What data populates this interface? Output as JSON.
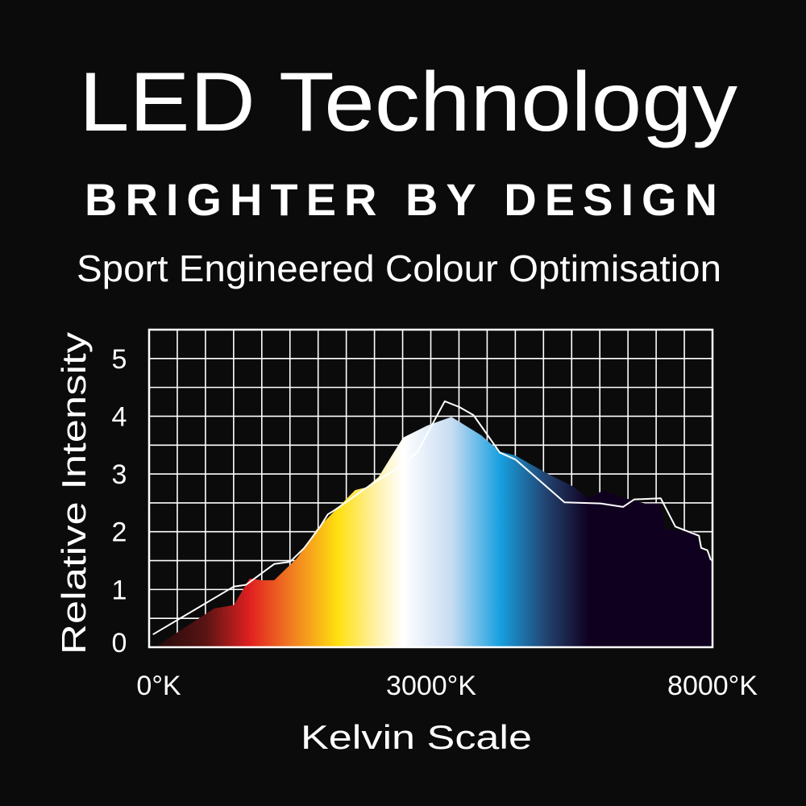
{
  "header": {
    "title": "LED Technology",
    "tagline": "BRIGHTER BY DESIGN",
    "subtitle": "Sport Engineered Colour Optimisation"
  },
  "colors": {
    "background": "#0b0b0b",
    "grid": "#ffffff",
    "line": "#ffffff"
  },
  "chart_data": {
    "type": "area",
    "xlabel": "Kelvin Scale",
    "ylabel": "Relative Intensity",
    "ylim": [
      0,
      5.5
    ],
    "xlim": [
      0,
      8000
    ],
    "x_scale": "piecewise (0–3000 on the left half, 3000–8000 on the right half)",
    "grid": true,
    "y_ticks": [
      "0",
      "1",
      "2",
      "3",
      "4",
      "5"
    ],
    "y_tick_values": [
      0,
      1,
      2,
      3,
      4,
      5
    ],
    "x_ticks": [
      "0°K",
      "3000°K",
      "8000°K"
    ],
    "x_tick_values": [
      0,
      3000,
      8000
    ],
    "area_gradient": [
      {
        "kelvin": 0,
        "color": "#1a0808"
      },
      {
        "kelvin": 600,
        "color": "#5a1414"
      },
      {
        "kelvin": 1070,
        "color": "#e02020"
      },
      {
        "kelvin": 1500,
        "color": "#f07a22"
      },
      {
        "kelvin": 2010,
        "color": "#ffe010"
      },
      {
        "kelvin": 2440,
        "color": "#fff2b0"
      },
      {
        "kelvin": 2700,
        "color": "#ffffff"
      },
      {
        "kelvin": 3360,
        "color": "#c8dcf2"
      },
      {
        "kelvin": 4220,
        "color": "#18a0e0"
      },
      {
        "kelvin": 5080,
        "color": "#22406c"
      },
      {
        "kelvin": 5800,
        "color": "#100020"
      },
      {
        "kelvin": 8000,
        "color": "#100020"
      }
    ],
    "series": [
      {
        "kind": "area",
        "points": [
          [
            70,
            0.01
          ],
          [
            690,
            0.67
          ],
          [
            900,
            0.73
          ],
          [
            1070,
            1.19
          ],
          [
            1200,
            1.16
          ],
          [
            1330,
            1.16
          ],
          [
            1570,
            1.54
          ],
          [
            1650,
            1.72
          ],
          [
            1780,
            2.04
          ],
          [
            2010,
            2.42
          ],
          [
            2190,
            2.72
          ],
          [
            2310,
            2.77
          ],
          [
            2440,
            2.95
          ],
          [
            2700,
            3.63
          ],
          [
            2960,
            3.84
          ],
          [
            3360,
            3.99
          ],
          [
            3890,
            3.67
          ],
          [
            4220,
            3.39
          ],
          [
            4500,
            3.32
          ],
          [
            4750,
            3.18
          ],
          [
            5080,
            3.0
          ],
          [
            5510,
            2.79
          ],
          [
            5790,
            2.58
          ],
          [
            6050,
            2.71
          ],
          [
            6370,
            2.6
          ],
          [
            6800,
            2.49
          ],
          [
            7080,
            2.49
          ],
          [
            7160,
            2.04
          ],
          [
            7660,
            2.0
          ],
          [
            7800,
            1.72
          ],
          [
            7940,
            1.58
          ],
          [
            8000,
            1.44
          ]
        ]
      },
      {
        "kind": "line",
        "points": [
          [
            40,
            0.22
          ],
          [
            900,
            1.05
          ],
          [
            1030,
            1.08
          ],
          [
            1330,
            1.44
          ],
          [
            1500,
            1.48
          ],
          [
            1650,
            1.72
          ],
          [
            1820,
            2.09
          ],
          [
            1900,
            2.3
          ],
          [
            1970,
            2.37
          ],
          [
            2380,
            2.84
          ],
          [
            2610,
            3.07
          ],
          [
            2850,
            3.37
          ],
          [
            3240,
            4.26
          ],
          [
            3500,
            4.16
          ],
          [
            3750,
            4.02
          ],
          [
            4220,
            3.37
          ],
          [
            4500,
            3.25
          ],
          [
            5370,
            2.51
          ],
          [
            6010,
            2.49
          ],
          [
            6410,
            2.43
          ],
          [
            6610,
            2.56
          ],
          [
            7080,
            2.58
          ],
          [
            7340,
            2.09
          ],
          [
            7760,
            1.93
          ],
          [
            7800,
            1.72
          ],
          [
            7910,
            1.68
          ],
          [
            7970,
            1.51
          ]
        ]
      }
    ]
  }
}
